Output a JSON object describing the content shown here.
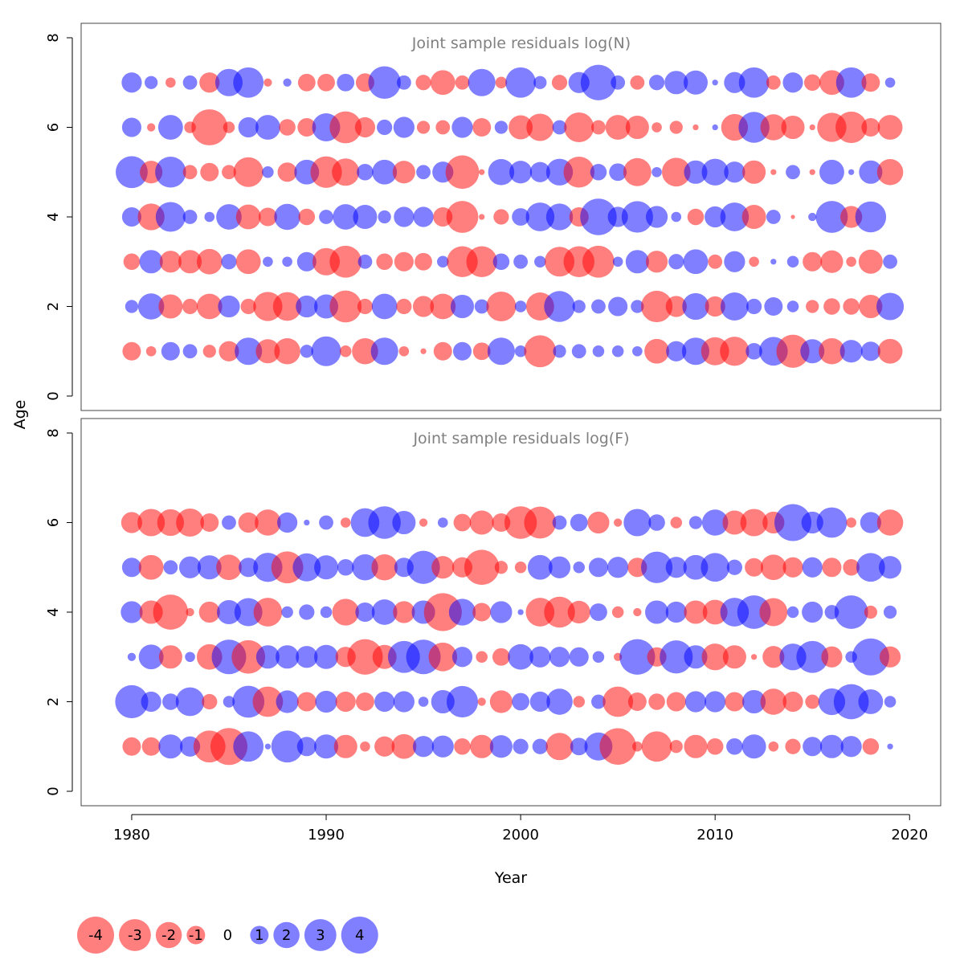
{
  "chart_data": {
    "type": "bubble",
    "xlabel": "Year",
    "ylabel": "Age",
    "xlim": [
      1977.4,
      2021.6
    ],
    "ylim": [
      0,
      8
    ],
    "x_ticks": [
      1980,
      1990,
      2000,
      2010,
      2020
    ],
    "y_ticks": [
      0,
      2,
      4,
      6,
      8
    ],
    "years": [
      1980,
      1981,
      1982,
      1983,
      1984,
      1985,
      1986,
      1987,
      1988,
      1989,
      1990,
      1991,
      1992,
      1993,
      1994,
      1995,
      1996,
      1997,
      1998,
      1999,
      2000,
      2001,
      2002,
      2003,
      2004,
      2005,
      2006,
      2007,
      2008,
      2009,
      2010,
      2011,
      2012,
      2013,
      2014,
      2015,
      2016,
      2017,
      2018,
      2019
    ],
    "colors": {
      "positive": "#0000ff",
      "negative": "#ff0000"
    },
    "panels": [
      {
        "title": "Joint sample residuals log(N)",
        "ages": [
          1,
          2,
          3,
          4,
          5,
          6,
          7
        ],
        "residuals": [
          [
            -1.0,
            -0.3,
            1.0,
            0.6,
            -0.5,
            -1.2,
            2.2,
            -1.7,
            -2.0,
            0.5,
            2.6,
            -0.4,
            -2.0,
            2.2,
            -0.3,
            -0.1,
            -1.0,
            1.0,
            -0.9,
            2.2,
            0.4,
            -3.0,
            0.5,
            0.6,
            0.4,
            0.4,
            0.3,
            -1.8,
            1.2,
            2.2,
            -2.3,
            -2.5,
            0.8,
            2.4,
            -3.2,
            1.7,
            -2.0,
            1.5,
            1.1,
            -1.8
          ],
          [
            0.5,
            2.0,
            -1.7,
            -0.7,
            -1.9,
            1.4,
            -0.7,
            -2.5,
            -2.4,
            1.4,
            1.7,
            -3.0,
            -0.7,
            1.9,
            -0.7,
            -1.3,
            -1.9,
            1.6,
            0.6,
            -2.6,
            0.4,
            -2.3,
            2.8,
            0.5,
            0.6,
            1.1,
            0.5,
            -2.9,
            -1.3,
            2.1,
            -1.2,
            2.3,
            0.7,
            1.0,
            0.4,
            -0.5,
            -0.8,
            -0.8,
            -1.6,
            2.2
          ],
          [
            -0.8,
            1.6,
            -1.4,
            -1.6,
            -1.9,
            0.7,
            -1.8,
            0.3,
            0.3,
            1.1,
            -2.2,
            -3.0,
            0.6,
            -0.8,
            -1.1,
            -0.9,
            0.4,
            -2.8,
            -2.8,
            0.8,
            0.6,
            0.4,
            -2.6,
            -2.8,
            -3.0,
            0.3,
            1.6,
            -1.4,
            0.7,
            1.8,
            -0.6,
            1.3,
            -0.3,
            0.1,
            0.4,
            -1.1,
            -1.5,
            -0.3,
            -1.7,
            0.6
          ],
          [
            1.1,
            -2.1,
            2.6,
            0.6,
            0.3,
            1.9,
            -1.8,
            -1.0,
            2.0,
            -0.8,
            0.6,
            1.9,
            1.7,
            0.5,
            1.2,
            1.2,
            -1.1,
            -3.0,
            -0.1,
            -0.7,
            0.9,
            2.4,
            2.1,
            -1.1,
            3.9,
            1.2,
            2.9,
            1.4,
            0.3,
            -0.8,
            1.3,
            2.4,
            -1.7,
            0.6,
            -0.05,
            0.2,
            3.0,
            -1.4,
            2.8,
            0.0
          ],
          [
            3.0,
            -1.5,
            2.8,
            -0.6,
            -1.0,
            -0.6,
            -2.6,
            0.4,
            -1.1,
            1.8,
            -2.9,
            -2.2,
            0.8,
            1.8,
            -1.5,
            0.6,
            1.3,
            -3.3,
            -0.1,
            2.0,
            1.5,
            1.2,
            2.1,
            -2.8,
            0.8,
            0.9,
            -2.3,
            0.3,
            -2.4,
            1.6,
            2.1,
            1.3,
            -1.6,
            -0.1,
            0.6,
            -0.1,
            1.8,
            0.1,
            1.6,
            -2.0
          ],
          [
            1.1,
            -0.2,
            1.8,
            -0.4,
            -3.8,
            -0.4,
            1.2,
            1.8,
            -0.8,
            -1.0,
            2.3,
            -3.0,
            -1.2,
            0.7,
            1.3,
            -0.5,
            -0.6,
            1.3,
            -1.0,
            0.5,
            -1.7,
            -2.2,
            0.6,
            -2.6,
            -0.6,
            -1.8,
            -1.6,
            -0.3,
            -0.5,
            -0.1,
            0.1,
            -2.1,
            2.8,
            -2.0,
            -1.6,
            -0.1,
            -2.5,
            -2.9,
            -1.0,
            -1.8
          ],
          [
            1.2,
            0.5,
            -0.3,
            0.6,
            -1.2,
            2.2,
            2.7,
            -0.2,
            0.2,
            -0.9,
            -0.9,
            0.9,
            -1.0,
            3.1,
            0.6,
            -0.7,
            -1.8,
            -0.6,
            2.2,
            -0.4,
            2.7,
            0.5,
            -0.7,
            1.3,
            3.7,
            0.6,
            -0.6,
            0.7,
            1.6,
            1.7,
            0.1,
            1.3,
            2.7,
            -0.6,
            1.2,
            -0.8,
            -1.8,
            2.7,
            -1.0,
            0.3
          ]
        ]
      },
      {
        "title": "Joint sample residuals log(F)",
        "ages": [
          1,
          2,
          3,
          4,
          5,
          6
        ],
        "residuals": [
          [
            -1.0,
            -1.0,
            1.7,
            1.2,
            -3.0,
            -4.0,
            2.7,
            0.1,
            3.0,
            1.1,
            1.7,
            -1.6,
            -0.3,
            -1.2,
            -1.8,
            1.3,
            1.4,
            -0.8,
            -1.6,
            1.5,
            0.7,
            0.7,
            -2.2,
            0.9,
            2.3,
            -3.9,
            -0.3,
            -2.7,
            -0.5,
            -1.6,
            -0.8,
            0.8,
            1.7,
            -0.3,
            -0.7,
            1.1,
            1.6,
            1.3,
            -0.8,
            0.1
          ],
          [
            3.2,
            1.2,
            0.8,
            2.4,
            -0.7,
            0.4,
            3.0,
            -2.7,
            1.5,
            -1.1,
            1.4,
            -1.2,
            -1.0,
            1.2,
            1.3,
            0.3,
            1.6,
            2.9,
            -0.2,
            -1.5,
            0.9,
            1.2,
            2.0,
            -0.4,
            0.6,
            -2.7,
            -1.0,
            -0.8,
            -1.1,
            1.3,
            1.3,
            -1.1,
            1.6,
            -2.0,
            -1.2,
            -0.6,
            2.1,
            3.6,
            1.8,
            0.4
          ],
          [
            0.2,
            1.8,
            -1.6,
            0.3,
            -1.9,
            3.5,
            -3.3,
            1.6,
            1.6,
            1.4,
            1.7,
            -1.2,
            -3.7,
            -1.7,
            3.0,
            3.5,
            -2.4,
            1.2,
            -0.4,
            -0.9,
            1.9,
            1.3,
            1.2,
            1.1,
            0.4,
            -0.2,
            3.7,
            -1.1,
            3.2,
            1.6,
            -2.1,
            -1.6,
            -0.1,
            -1.4,
            2.1,
            3.0,
            -1.3,
            0.4,
            4.0,
            -1.3
          ],
          [
            1.4,
            -1.6,
            -3.6,
            -0.2,
            -1.3,
            1.7,
            2.3,
            -2.4,
            0.4,
            0.7,
            0.4,
            -2.1,
            1.1,
            1.9,
            -1.4,
            1.6,
            -4.2,
            2.1,
            -1.0,
            1.4,
            0.1,
            -2.4,
            -2.8,
            -1.5,
            0.9,
            -0.4,
            -0.2,
            1.6,
            1.3,
            -1.6,
            -1.8,
            2.4,
            3.3,
            -2.3,
            0.4,
            1.3,
            0.6,
            3.3,
            -0.5,
            0.5
          ],
          [
            1.1,
            -1.8,
            0.6,
            1.4,
            1.7,
            -1.9,
            1.1,
            2.5,
            -3.0,
            2.3,
            1.7,
            0.8,
            2.0,
            -2.0,
            1.1,
            3.2,
            -1.5,
            -1.2,
            -3.6,
            -0.5,
            -0.4,
            1.8,
            1.4,
            0.4,
            1.1,
            1.3,
            -1.1,
            2.9,
            1.3,
            1.8,
            2.4,
            0.7,
            -1.0,
            -1.9,
            -1.2,
            1.2,
            -1.1,
            -0.8,
            2.4,
            1.5
          ],
          [
            -1.3,
            -2.2,
            -2.1,
            -2.3,
            -1.0,
            0.6,
            -1.2,
            -2.0,
            1.2,
            0.1,
            0.6,
            -0.3,
            2.4,
            3.1,
            1.6,
            -0.2,
            0.3,
            -0.9,
            -1.7,
            -1.0,
            -3.1,
            -3.0,
            0.6,
            0.9,
            -1.4,
            -0.2,
            2.2,
            0.8,
            -0.4,
            0.5,
            2.0,
            -1.7,
            -2.2,
            -1.4,
            4.0,
            1.4,
            2.7,
            -0.3,
            1.3,
            -2.0
          ]
        ]
      }
    ],
    "legend": {
      "values": [
        -4,
        -3,
        -2,
        -1,
        0,
        1,
        2,
        3,
        4
      ],
      "labels": [
        "-4",
        "-3",
        "-2",
        "-1",
        "0",
        "1",
        "2",
        "3",
        "4"
      ]
    }
  }
}
